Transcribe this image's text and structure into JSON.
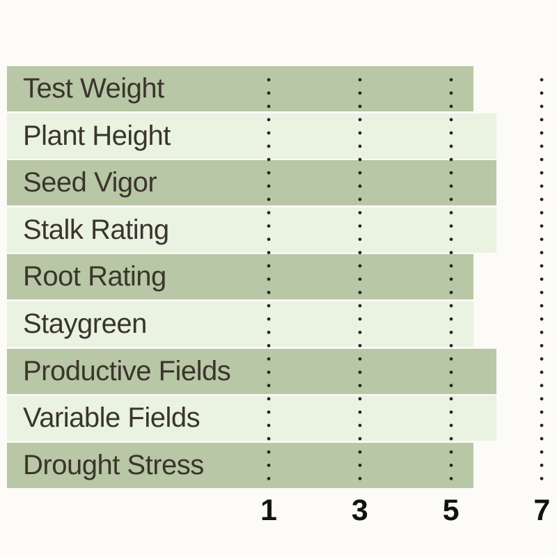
{
  "page": {
    "background": "#fcfbf7"
  },
  "chart_data": {
    "type": "bar",
    "orientation": "horizontal",
    "title": "",
    "xlabel": "",
    "ylabel": "",
    "categories": [
      "Test Weight",
      "Plant Height",
      "Seed Vigor",
      "Stalk Rating",
      "Root Rating",
      "Staygreen",
      "Productive Fields",
      "Variable Fields",
      "Drought Stress"
    ],
    "values": [
      5.5,
      6,
      6,
      6,
      5.5,
      5.5,
      6,
      6,
      5.5
    ],
    "tick_labels": [
      "1",
      "3",
      "5",
      "7"
    ],
    "tick_values": [
      1,
      3,
      5,
      7
    ],
    "axis_range": [
      1,
      7
    ],
    "grid": "dotted-vertical-lines",
    "legend": "none",
    "row_fill_pattern": "alternating dark/light sage bands starting dark",
    "colors": {
      "band_dark": "#b8c7a5",
      "band_light": "#eaf2e1",
      "dot": "#232320",
      "label_text": "#3a352c",
      "tick_text": "#121212",
      "background": "#fcfbf7"
    }
  }
}
